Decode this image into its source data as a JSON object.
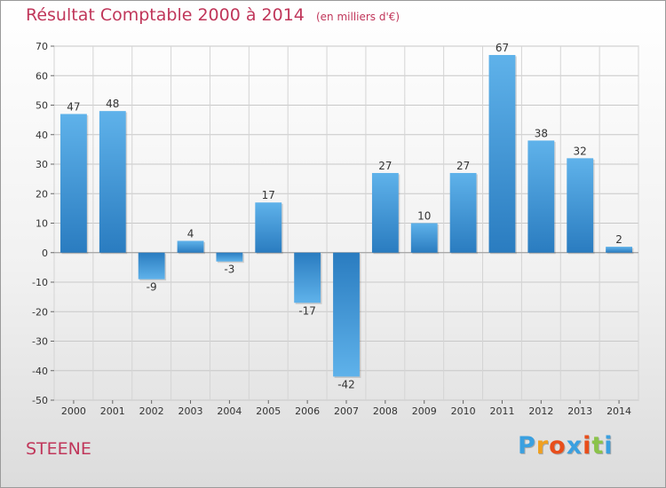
{
  "chart_data": {
    "type": "bar",
    "title": "Résultat Comptable 2000 à 2014",
    "unit": "(en milliers d'€)",
    "categories": [
      "2000",
      "2001",
      "2002",
      "2003",
      "2004",
      "2005",
      "2006",
      "2007",
      "2008",
      "2009",
      "2010",
      "2011",
      "2012",
      "2013",
      "2014"
    ],
    "values": [
      47,
      48,
      -9,
      4,
      -3,
      17,
      -17,
      -42,
      27,
      10,
      27,
      67,
      38,
      32,
      2
    ],
    "value_labels": [
      "47",
      "48",
      "-9",
      "4",
      "-3",
      "17",
      "-17",
      "-42",
      "27",
      "10",
      "27",
      "67",
      "38",
      "32",
      "2"
    ],
    "yticks": [
      70,
      60,
      50,
      40,
      30,
      20,
      10,
      0,
      -10,
      -20,
      -30,
      -40,
      -50
    ],
    "ylim": [
      -50,
      70
    ],
    "xlabel": "",
    "ylabel": "",
    "grid": true,
    "colors": {
      "bar_light": "#5fb2ea",
      "bar_dark": "#2a7cc0",
      "title": "#c0365a"
    }
  },
  "footer": {
    "place": "STEENE"
  },
  "logo": {
    "letters": [
      "P",
      "r",
      "o",
      "x",
      "i",
      "t",
      "i"
    ],
    "colors": [
      "#3aa0e0",
      "#f0a020",
      "#e84e1b",
      "#3aa0e0",
      "#e84e1b",
      "#8bc34a",
      "#3aa0e0"
    ]
  }
}
